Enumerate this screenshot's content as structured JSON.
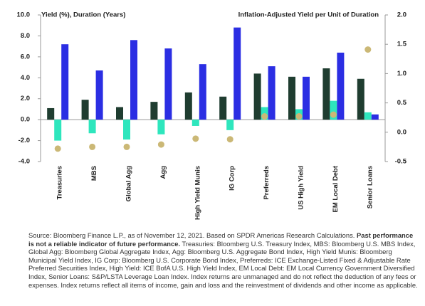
{
  "chart_data": {
    "type": "bar",
    "y_axis_title": "Yield (%), Duration (Years)",
    "y2_axis_title": "Inflation-Adjusted Yield per Unit of Duration",
    "categories": [
      "Treasuries",
      "MBS",
      "Global Agg",
      "Agg",
      "High Yield Munis",
      "IG Corp",
      "Preferreds",
      "US High Yield",
      "EM Local Debt",
      "Senior Loans"
    ],
    "series": [
      {
        "color": "#1f3d30",
        "values": [
          1.1,
          1.9,
          1.2,
          1.7,
          2.6,
          2.2,
          4.4,
          4.1,
          4.9,
          3.9
        ]
      },
      {
        "color": "#2ee6bd",
        "values": [
          -2.0,
          -1.3,
          -1.9,
          -1.4,
          -0.6,
          -1.0,
          1.2,
          1.0,
          1.8,
          0.7
        ]
      },
      {
        "color": "#2b2ee3",
        "values": [
          7.2,
          4.7,
          7.6,
          6.8,
          5.3,
          8.8,
          5.1,
          4.1,
          6.4,
          0.5
        ]
      },
      {
        "type": "scatter",
        "axis": "y2",
        "color": "#cbb876",
        "values": [
          -0.28,
          -0.25,
          -0.25,
          -0.21,
          -0.11,
          -0.12,
          0.27,
          0.27,
          0.3,
          1.41
        ]
      }
    ],
    "ylim": [
      -4,
      10
    ],
    "yticks": [
      {
        "value": -4,
        "label": "-4.0"
      },
      {
        "value": -2,
        "label": "-2.0"
      },
      {
        "value": 0,
        "label": "0.0"
      },
      {
        "value": 2,
        "label": "2.0"
      },
      {
        "value": 4,
        "label": "4.0"
      },
      {
        "value": 6,
        "label": "6.0"
      },
      {
        "value": 8,
        "label": "8.0"
      },
      {
        "value": 10,
        "label": "10.0"
      }
    ],
    "y2lim": [
      -0.5,
      2
    ],
    "y2ticks": [
      -0.5,
      {
        "value": 0,
        "label": "0.0"
      },
      0.5,
      {
        "value": 1,
        "label": "1.0"
      },
      1.5,
      {
        "value": 2,
        "label": "2.0"
      }
    ]
  },
  "footnote": {
    "lead": "Source: Bloomberg Finance L.P., as of November 12, 2021. Based on SPDR Americas Research Calculations.",
    "emphasis": "Past performance is not a reliable indicator of future performance.",
    "body": "Treasuries: Bloomberg U.S. Treasury Index, MBS: Bloomberg U.S. MBS Index, Global Agg: Bloomberg Global Aggregate Index, Agg: Bloomberg U.S. Aggregate Bond Index, High Yield Munis: Bloomberg Municipal Yield Index, IG Corp: Bloomberg U.S. Corporate Bond Index, Preferreds: ICE Exchange-Listed Fixed & Adjustable Rate Preferred Securities Index, High Yield: ICE BofA U.S. High Yield Index, EM Local Debt: EM Local Currency Government Diversified Index, Senior Loans: S&P/LSTA Leverage Loan Index. Index returns are unmanaged and do not reflect the deduction of any fees or expenses. Index returns reflect all items of income, gain and loss and the reinvestment of dividends and other income as applicable."
  }
}
